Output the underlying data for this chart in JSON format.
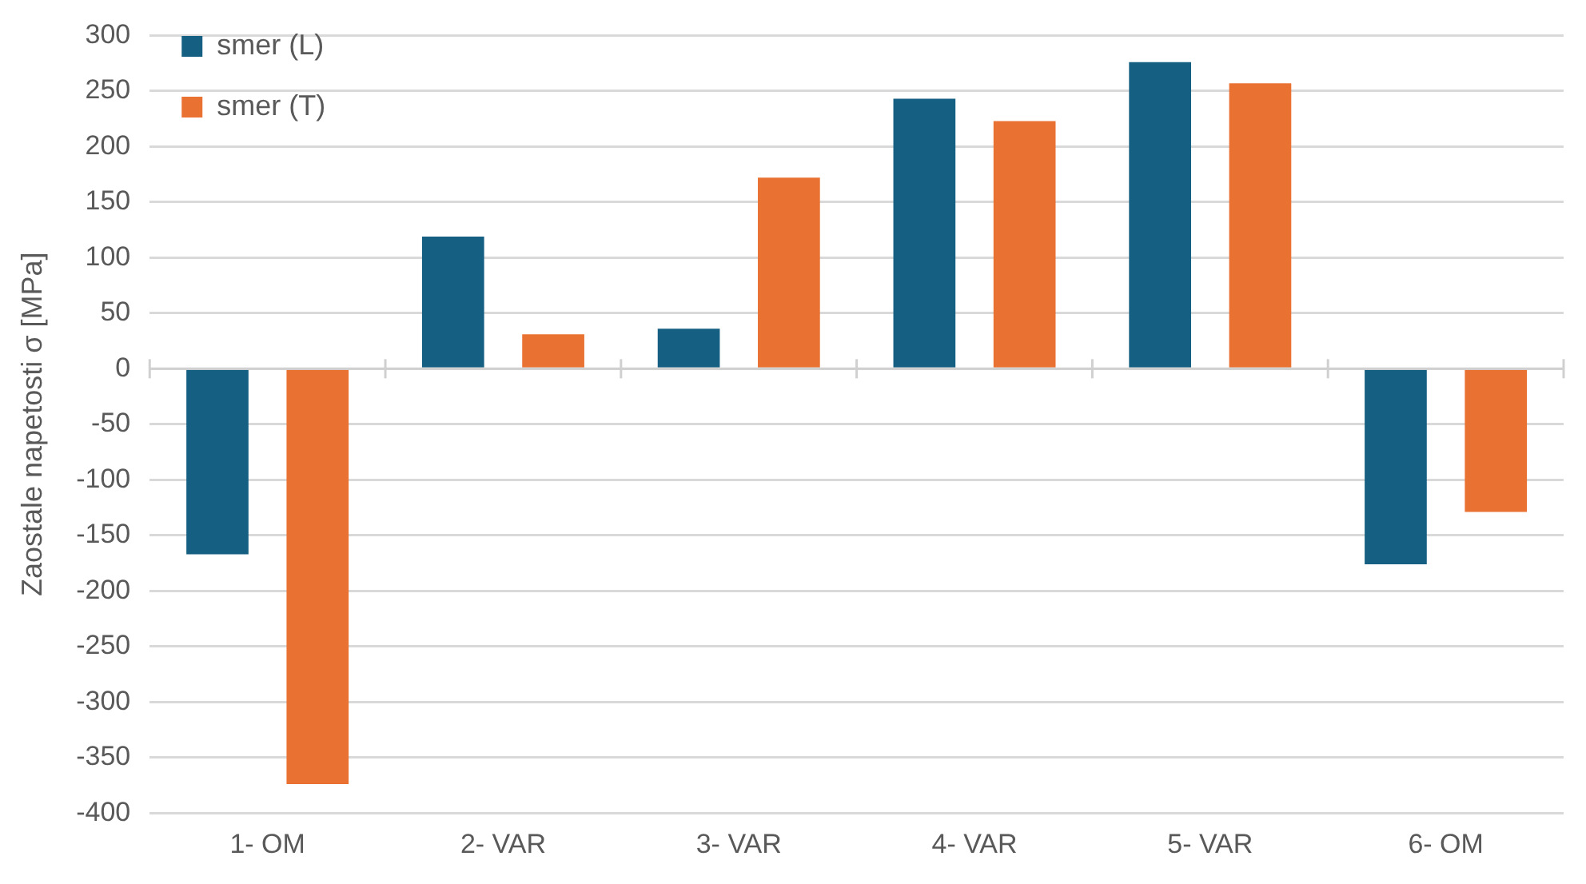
{
  "chart_data": {
    "type": "bar",
    "ylabel": "Zaostale napetosti σ [MPa]",
    "categories": [
      "1- OM",
      "2- VAR",
      "3- VAR",
      "4- VAR",
      "5- VAR",
      "6- OM"
    ],
    "series": [
      {
        "name": "smer (L)",
        "color": "#156082",
        "values": [
          -167,
          119,
          36,
          243,
          276,
          -176
        ]
      },
      {
        "name": "smer (T)",
        "color": "#e97132",
        "values": [
          -374,
          31,
          172,
          223,
          257,
          -129
        ]
      }
    ],
    "ylim": [
      -400,
      300
    ],
    "yticks": [
      -400,
      -350,
      -300,
      -250,
      -200,
      -150,
      -100,
      -50,
      0,
      50,
      100,
      150,
      200,
      250,
      300
    ],
    "grid": "y",
    "legend": "top left"
  }
}
